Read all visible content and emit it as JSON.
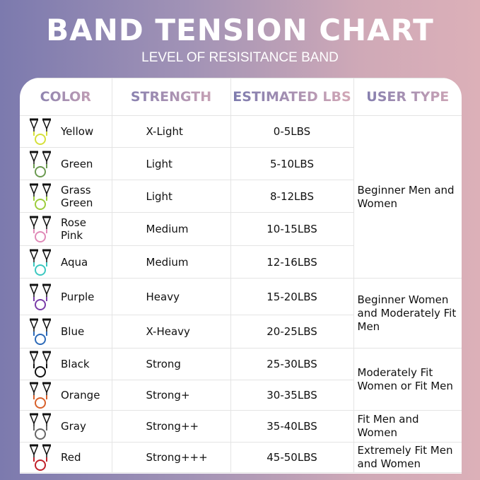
{
  "title": "Band Tension Chart",
  "subtitle": "LEVEL OF RESISITANCE BAND",
  "headers": [
    "Color",
    "Strength",
    "Estimated LBS",
    "User Type"
  ],
  "rows": [
    {
      "color": "Yellow",
      "hex": "#d6e03a",
      "strength": "X-Light",
      "lbs": "0-5LBS"
    },
    {
      "color": "Green",
      "hex": "#6b9a50",
      "strength": "Light",
      "lbs": "5-10LBS"
    },
    {
      "color": "Grass Green",
      "hex": "#9ccc3c",
      "strength": "Light",
      "lbs": "8-12LBS"
    },
    {
      "color": "Rose Pink",
      "hex": "#e08ab8",
      "strength": "Medium",
      "lbs": "10-15LBS"
    },
    {
      "color": "Aqua",
      "hex": "#3cc8c0",
      "strength": "Medium",
      "lbs": "12-16LBS"
    },
    {
      "color": "Purple",
      "hex": "#7a3ca8",
      "strength": "Heavy",
      "lbs": "15-20LBS"
    },
    {
      "color": "Blue",
      "hex": "#2c6ab8",
      "strength": "X-Heavy",
      "lbs": "20-25LBS"
    },
    {
      "color": "Black",
      "hex": "#111111",
      "strength": "Strong",
      "lbs": "25-30LBS"
    },
    {
      "color": "Orange",
      "hex": "#d8602a",
      "strength": "Strong+",
      "lbs": "30-35LBS"
    },
    {
      "color": "Gray",
      "hex": "#666666",
      "strength": "Strong++",
      "lbs": "35-40LBS"
    },
    {
      "color": "Red",
      "hex": "#c0202a",
      "strength": "Strong+++",
      "lbs": "45-50LBS"
    }
  ],
  "user_types": [
    {
      "text": "Beginner Men and Women",
      "start": 0,
      "span": 5
    },
    {
      "text": "Beginner Women and Moderately Fit Men",
      "start": 5,
      "span": 2
    },
    {
      "text": "Moderately Fit Women or Fit Men",
      "start": 7,
      "span": 2
    },
    {
      "text": "Fit Men and Women",
      "start": 9,
      "span": 1
    },
    {
      "text": "Extremely Fit Men and Women",
      "start": 10,
      "span": 1
    }
  ]
}
